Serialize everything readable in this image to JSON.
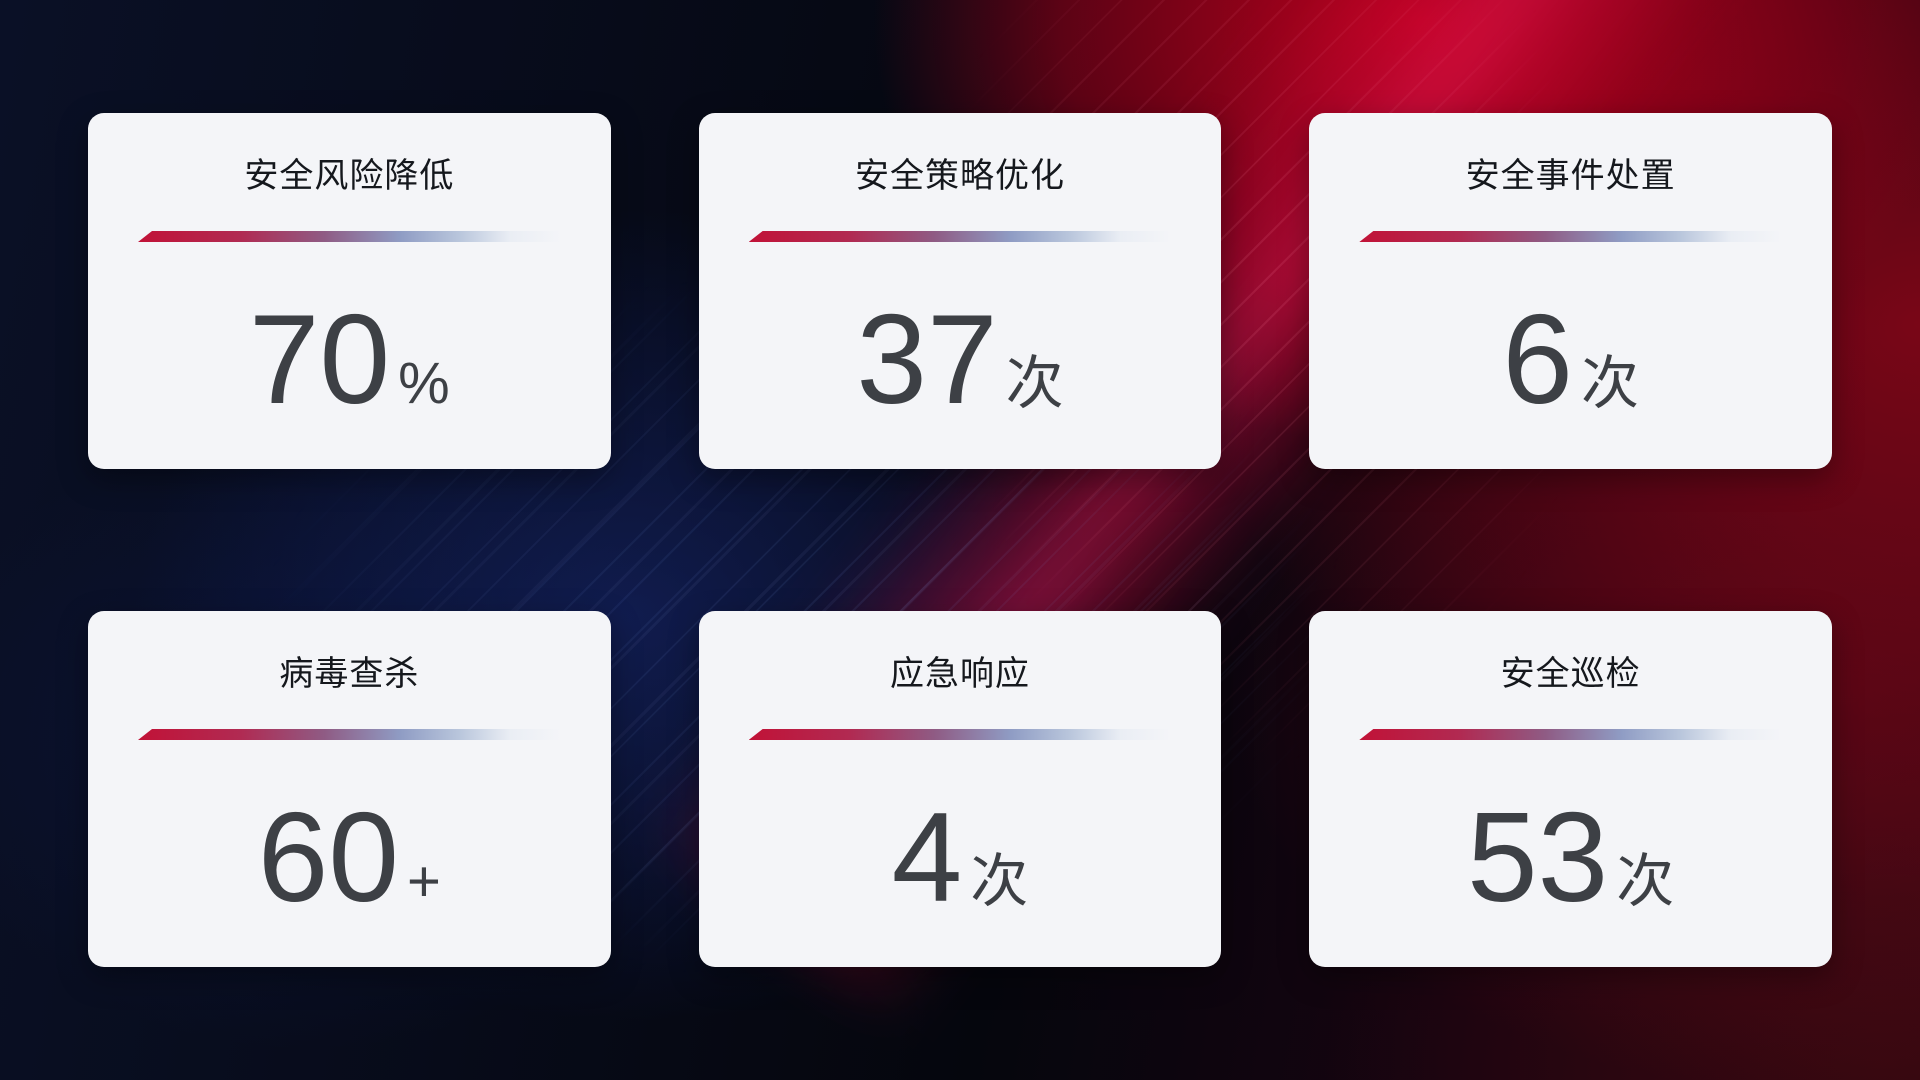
{
  "cards": [
    {
      "title": "安全风险降低",
      "value": "70",
      "suffix": "%"
    },
    {
      "title": "安全策略优化",
      "value": "37",
      "suffix": "次"
    },
    {
      "title": "安全事件处置",
      "value": "6",
      "suffix": "次"
    },
    {
      "title": "病毒查杀",
      "value": "60",
      "suffix": "+"
    },
    {
      "title": "应急响应",
      "value": "4",
      "suffix": "次"
    },
    {
      "title": "安全巡检",
      "value": "53",
      "suffix": "次"
    }
  ],
  "colors": {
    "background_base": "#05070e",
    "background_red": "#a00016",
    "background_blue": "#16246a",
    "card_background": "#f4f5f8",
    "title_text": "#15181d",
    "value_text": "#3d4045",
    "divider_red": "#c11237",
    "divider_blue": "#b9c6dc"
  }
}
